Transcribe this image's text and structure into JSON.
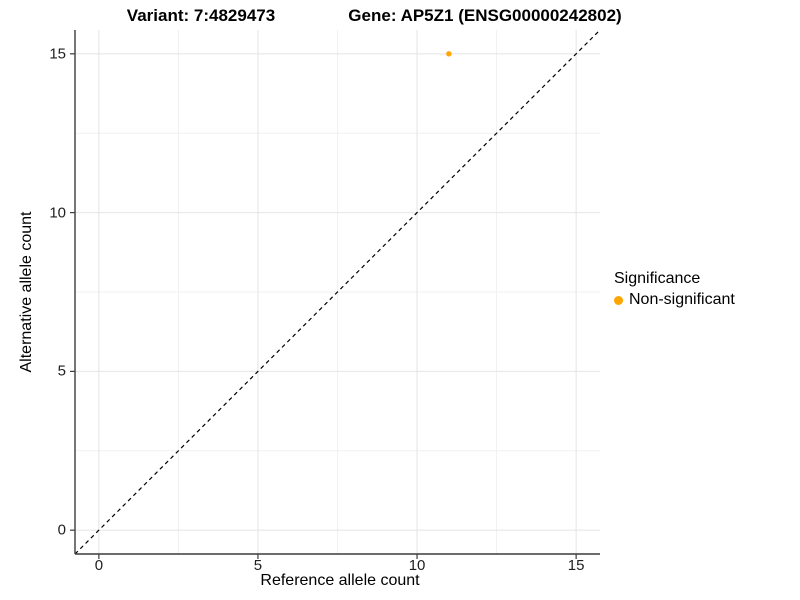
{
  "chart_data": {
    "type": "scatter",
    "titles": {
      "left": "Variant: 7:4829473",
      "right": "Gene: AP5Z1 (ENSG00000242802)"
    },
    "xlabel": "Reference allele count",
    "ylabel": "Alternative allele count",
    "xlim": [
      -0.75,
      15.75
    ],
    "ylim": [
      -0.75,
      15.75
    ],
    "x_ticks": [
      0,
      5,
      10,
      15
    ],
    "y_ticks": [
      0,
      5,
      10,
      15
    ],
    "x_minor_ticks": [
      2.5,
      7.5,
      12.5
    ],
    "y_minor_ticks": [
      2.5,
      7.5,
      12.5
    ],
    "grid": true,
    "points": [
      {
        "x": 11,
        "y": 15,
        "series": "Non-significant"
      }
    ],
    "identity_line": {
      "style": "dashed",
      "color": "#000000",
      "from": [
        -0.75,
        -0.75
      ],
      "to": [
        15.75,
        15.75
      ]
    },
    "legend": {
      "title": "Significance",
      "position": "right",
      "items": [
        {
          "label": "Non-significant",
          "color": "#FFA500"
        }
      ]
    },
    "colors": {
      "point": "#FFA500",
      "grid_major": "#E4E4E4",
      "grid_minor": "#F1F1F1",
      "axis_line": "#3C3C3C",
      "tick_mark": "#3C3C3C",
      "background": "#FFFFFF"
    }
  }
}
